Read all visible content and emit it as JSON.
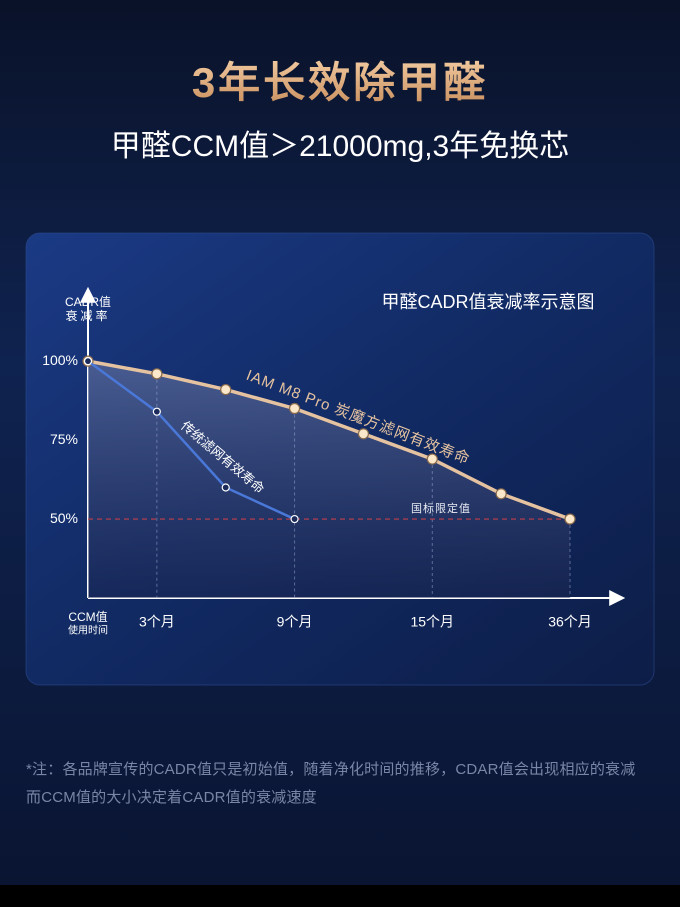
{
  "title": "3年长效除甲醛",
  "subtitle": "甲醛CCM值＞21000mg,3年免换芯",
  "chart_data": {
    "type": "line",
    "title": "甲醛CADR值衰减率示意图",
    "y_label": [
      "CADR值",
      "衰减率"
    ],
    "x_label": [
      "CCM值",
      "使用时间"
    ],
    "categories": [
      null,
      "3个月",
      null,
      "9个月",
      null,
      "15个月",
      null,
      "36个月"
    ],
    "series": [
      {
        "name": "IAM M8 Pro 炭魔方滤网有效寿命",
        "color": "#e6c3a0",
        "values": [
          100,
          96,
          91,
          85,
          77,
          69,
          58,
          50
        ]
      },
      {
        "name": "传统滤网有效寿命",
        "color": "#4a78d8",
        "values": [
          100,
          84,
          60,
          50,
          null,
          null,
          null,
          null
        ]
      }
    ],
    "ylim": [
      25,
      120
    ],
    "yticks": [
      {
        "value": 50,
        "label": "50%"
      },
      {
        "value": 75,
        "label": "75%"
      },
      {
        "value": 100,
        "label": "100%"
      }
    ],
    "grid": false,
    "reference_line": {
      "value": 50,
      "label": "国标限定值",
      "color": "#c0404a"
    }
  },
  "footnote": "*注：各品牌宣传的CADR值只是初始值，随着净化时间的推移，CDAR值会出现相应的衰减　而CCM值的大小决定着CADR值的衰减速度"
}
